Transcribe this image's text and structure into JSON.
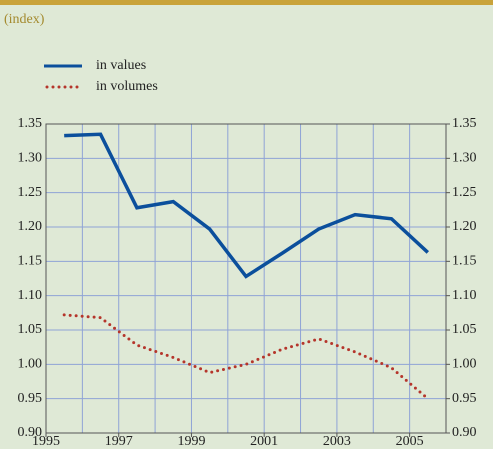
{
  "chart_data": {
    "type": "line",
    "title": "(index)",
    "x": [
      1995.5,
      1996.5,
      1997.5,
      1998.5,
      1999.5,
      2000.5,
      2001.5,
      2002.5,
      2003.5,
      2004.5,
      2005.5
    ],
    "series": [
      {
        "name": "in values",
        "color": "#0b4f9c",
        "style": "solid",
        "values": [
          1.333,
          1.335,
          1.228,
          1.237,
          1.197,
          1.128,
          1.162,
          1.197,
          1.218,
          1.212,
          1.163
        ]
      },
      {
        "name": "in volumes",
        "color": "#b5352b",
        "style": "dotted",
        "values": [
          1.072,
          1.068,
          1.028,
          1.01,
          0.988,
          1.0,
          1.022,
          1.037,
          1.018,
          0.995,
          0.95
        ]
      }
    ],
    "xlim": [
      1995,
      2006
    ],
    "xticks": [
      1995,
      1997,
      1999,
      2001,
      2003,
      2005
    ],
    "xminor_ticks": [
      1996,
      1998,
      2000,
      2002,
      2004,
      2006
    ],
    "ylim": [
      0.9,
      1.35
    ],
    "yticks": [
      {
        "value": 0.9,
        "label": "0.90"
      },
      0.95,
      {
        "value": 1.0,
        "label": "1.00"
      },
      1.05,
      {
        "value": 1.1,
        "label": "1.10"
      },
      1.15,
      {
        "value": 1.2,
        "label": "1.20"
      },
      1.25,
      {
        "value": 1.3,
        "label": "1.30"
      },
      1.35
    ],
    "y2lim": [
      0.9,
      1.35
    ],
    "y2ticks": [
      {
        "value": 0.9,
        "label": "0.90"
      },
      0.95,
      {
        "value": 1.0,
        "label": "1.00"
      },
      1.05,
      {
        "value": 1.1,
        "label": "1.10"
      },
      1.15,
      {
        "value": 1.2,
        "label": "1.20"
      },
      1.25,
      {
        "value": 1.3,
        "label": "1.30"
      },
      1.35
    ],
    "grid": true
  }
}
